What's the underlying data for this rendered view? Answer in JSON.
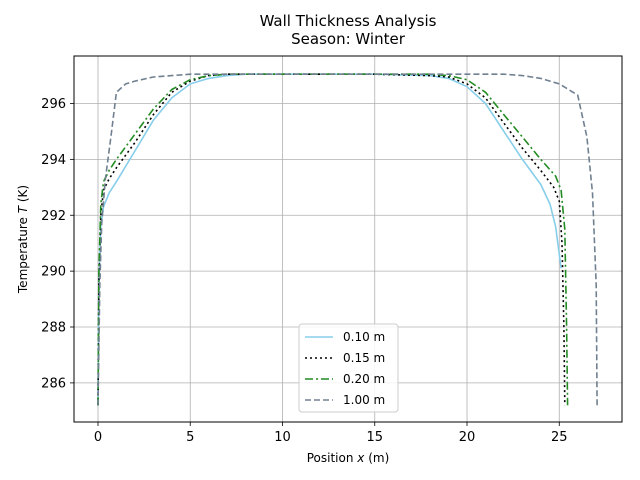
{
  "chart_data": {
    "type": "line",
    "title": "Wall Thickness Analysis",
    "subtitle": "Season: Winter",
    "xlabel_prefix": "Position ",
    "xlabel_var": "x",
    "xlabel_suffix": " (m)",
    "ylabel_prefix": "Temperature ",
    "ylabel_var": "T",
    "ylabel_suffix": " (K)",
    "xlim": [
      -1.3,
      28.4
    ],
    "ylim": [
      284.6,
      297.7
    ],
    "xticks": [
      0,
      5,
      10,
      15,
      20,
      25
    ],
    "yticks": [
      286,
      288,
      290,
      292,
      294,
      296
    ],
    "grid": true,
    "legend_position": "lower center",
    "series": [
      {
        "name": "0.10 m",
        "color": "#87ceeb",
        "dash": "",
        "x": [
          0,
          0.05,
          0.15,
          0.3,
          0.6,
          1,
          2,
          3,
          4,
          5,
          6,
          7,
          8,
          10,
          15,
          18,
          19,
          20,
          21,
          22,
          23,
          24,
          24.5,
          24.8,
          25.0,
          25.1
        ],
        "y": [
          285.2,
          289.5,
          291.6,
          292.3,
          292.8,
          293.2,
          294.3,
          295.4,
          296.2,
          296.7,
          296.9,
          297.0,
          297.05,
          297.05,
          297.05,
          297.0,
          296.9,
          296.6,
          296.0,
          295.0,
          294.0,
          293.1,
          292.4,
          291.6,
          290.6,
          290.1
        ]
      },
      {
        "name": "0.15 m",
        "color": "#000000",
        "dash": "2 3",
        "x": [
          0,
          0.05,
          0.15,
          0.3,
          0.6,
          1,
          2,
          3,
          4,
          5,
          6,
          7,
          8,
          10,
          15,
          18,
          19,
          20,
          21,
          22,
          23,
          24,
          24.7,
          25.0,
          25.15,
          25.25,
          25.3
        ],
        "y": [
          285.2,
          289.6,
          292.0,
          292.9,
          293.3,
          293.7,
          294.6,
          295.6,
          296.4,
          296.8,
          297.0,
          297.05,
          297.05,
          297.05,
          297.05,
          297.0,
          296.95,
          296.7,
          296.2,
          295.3,
          294.4,
          293.6,
          293.0,
          292.5,
          291.0,
          288.0,
          285.2
        ]
      },
      {
        "name": "0.20 m",
        "color": "#228b22",
        "dash": "8 3 2 3",
        "x": [
          0,
          0.05,
          0.15,
          0.3,
          0.6,
          1,
          2,
          3,
          4,
          5,
          6,
          7,
          8,
          10,
          15,
          18,
          19,
          20,
          21,
          22,
          23,
          24,
          24.8,
          25.1,
          25.3,
          25.4,
          25.45
        ],
        "y": [
          285.2,
          290.0,
          292.4,
          293.2,
          293.6,
          294.0,
          294.9,
          295.8,
          296.5,
          296.85,
          297.0,
          297.05,
          297.05,
          297.05,
          297.05,
          297.05,
          297.0,
          296.85,
          296.4,
          295.6,
          294.8,
          294.0,
          293.4,
          292.9,
          291.5,
          288.0,
          285.2
        ]
      },
      {
        "name": "1.00 m",
        "color": "#708090",
        "dash": "6 3",
        "x": [
          0,
          0.1,
          0.2,
          0.4,
          0.7,
          1,
          1.5,
          2,
          3,
          4,
          5,
          7,
          10,
          15,
          20,
          22,
          23,
          24,
          25,
          26,
          26.5,
          26.8,
          27.0,
          27.05
        ],
        "y": [
          285.2,
          289.5,
          291.7,
          293.3,
          294.8,
          296.4,
          296.7,
          296.8,
          296.95,
          297.0,
          297.05,
          297.05,
          297.05,
          297.05,
          297.05,
          297.05,
          297.0,
          296.9,
          296.7,
          296.3,
          294.8,
          292.8,
          289.5,
          285.2
        ]
      }
    ]
  }
}
